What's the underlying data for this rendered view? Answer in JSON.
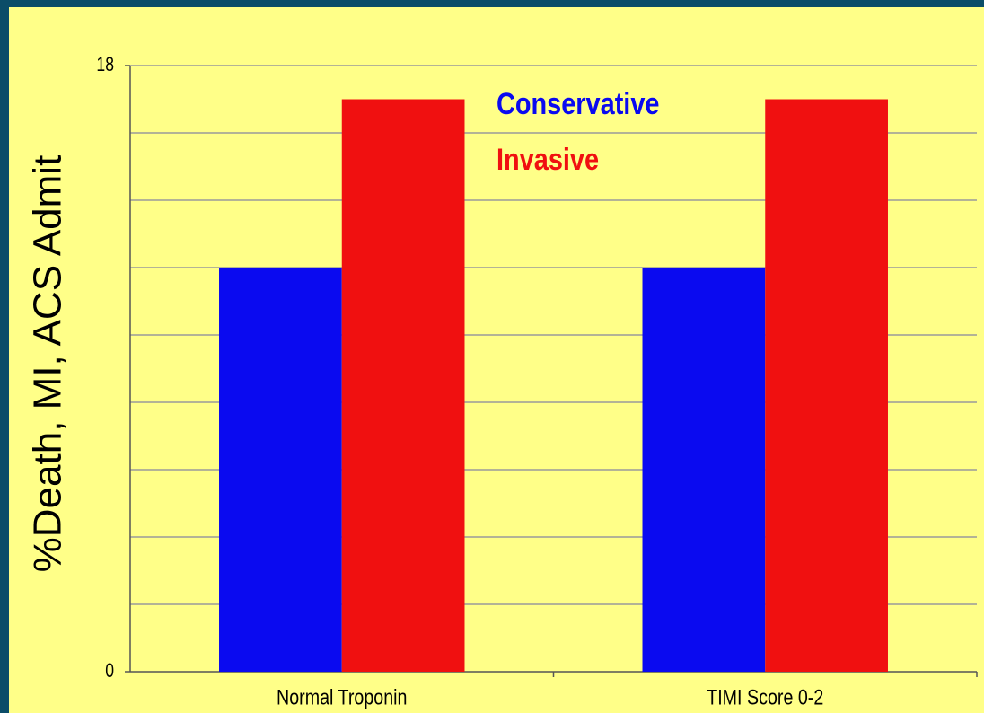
{
  "chart_data": {
    "type": "bar",
    "y_label": "%Death, MI, ACS Admit",
    "categories": [
      "Normal Troponin",
      "TIMI Score 0-2"
    ],
    "series": [
      {
        "name": "Conservative",
        "color": "#0a0af0",
        "values": [
          12,
          12
        ]
      },
      {
        "name": "Invasive",
        "color": "#f01010",
        "values": [
          17,
          17
        ]
      }
    ],
    "ylim": [
      0,
      18
    ],
    "yticks": [
      0,
      18
    ],
    "grid_lines": [
      2,
      4,
      6,
      8,
      10,
      12,
      14,
      16,
      18
    ],
    "grid": true,
    "legend": "top-center"
  }
}
